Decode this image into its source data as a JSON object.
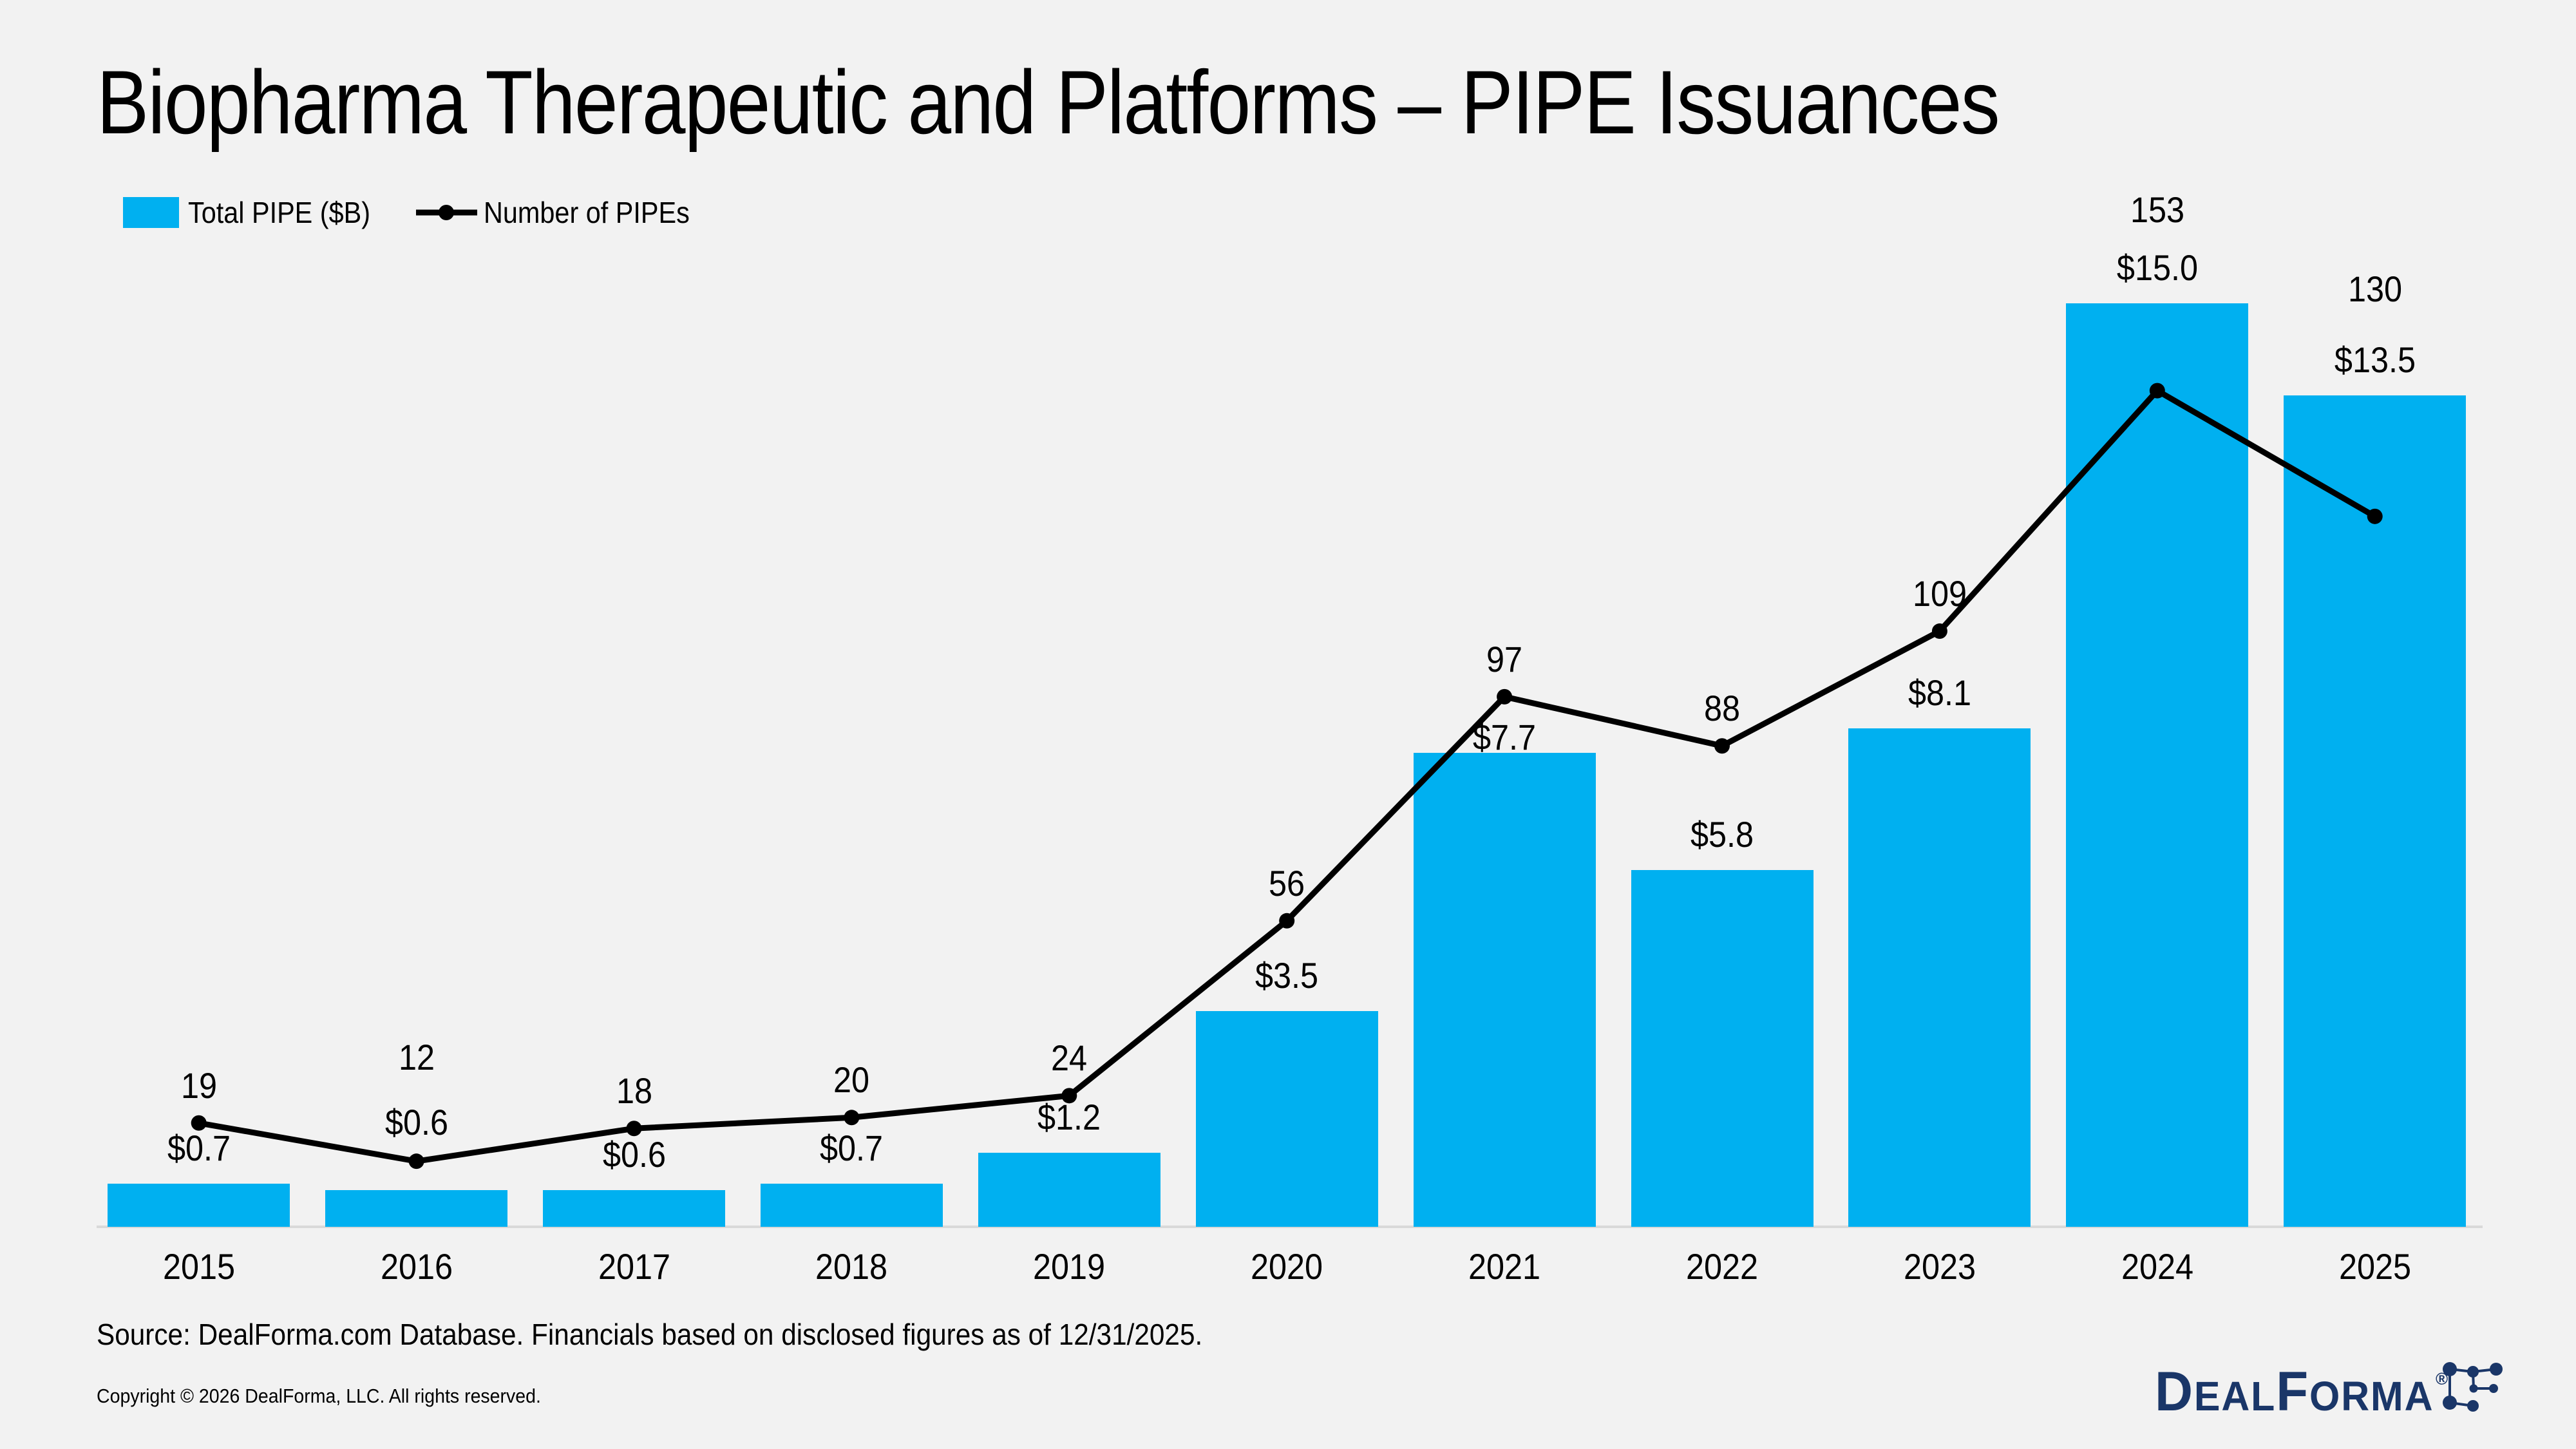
{
  "title": "Biopharma Therapeutic and Platforms – PIPE Issuances",
  "chart_data": {
    "type": "bar",
    "combo": "bar+line",
    "title": "Biopharma Therapeutic and Platforms – PIPE Issuances",
    "categories": [
      "2015",
      "2016",
      "2017",
      "2018",
      "2019",
      "2020",
      "2021",
      "2022",
      "2023",
      "2024",
      "2025"
    ],
    "series": [
      {
        "name": "Total PIPE ($B)",
        "type": "bar",
        "color": "#00B0F0",
        "values": [
          0.7,
          0.6,
          0.6,
          0.7,
          1.2,
          3.5,
          7.7,
          5.8,
          8.1,
          15.0,
          13.5
        ],
        "labels": [
          "$0.7",
          "$0.6",
          "$0.6",
          "$0.7",
          "$1.2",
          "$3.5",
          "$7.7",
          "$5.8",
          "$8.1",
          "$15.0",
          "$13.5"
        ]
      },
      {
        "name": "Number of PIPEs",
        "type": "line",
        "color": "#000000",
        "values": [
          19,
          12,
          18,
          20,
          24,
          56,
          97,
          88,
          109,
          153,
          130
        ],
        "labels": [
          "19",
          "12",
          "18",
          "20",
          "24",
          "56",
          "97",
          "88",
          "109",
          "153",
          "130"
        ]
      }
    ],
    "xlabel": "",
    "ylabel": "",
    "grid": false,
    "axes_hidden": true,
    "legend_position": "top-left",
    "background": "#F2F2F2"
  },
  "footer": {
    "source": "Source: DealForma.com Database. Financials based on disclosed figures as of 12/31/2025.",
    "copyright": "Copyright © 2026 DealForma, LLC. All rights reserved."
  },
  "logo": {
    "text_parts": [
      "D",
      "EAL",
      "F",
      "ORMA"
    ],
    "registered": "®",
    "brand_color": "#1A3668",
    "icon": "network-nodes-icon"
  },
  "colors": {
    "bar_blue": "#00B0F0",
    "line_black": "#000000",
    "background": "#F2F2F2",
    "axis_line": "#D9D9D9",
    "logo_navy": "#1A3668"
  }
}
